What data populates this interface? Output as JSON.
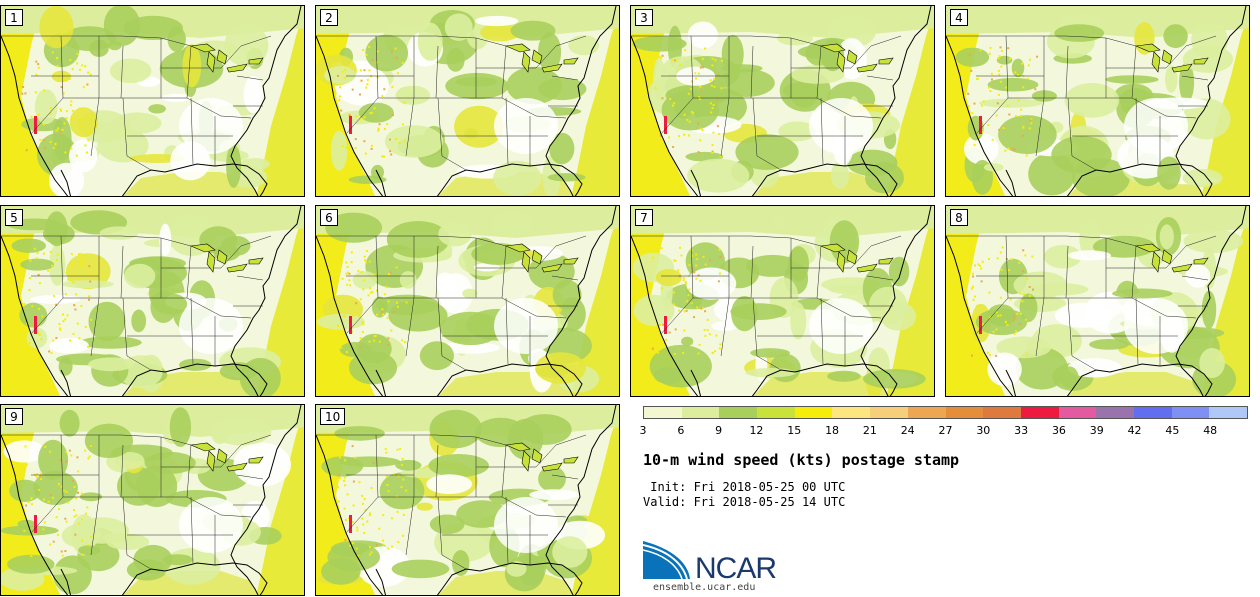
{
  "panels": [
    {
      "label": "1"
    },
    {
      "label": "2"
    },
    {
      "label": "3"
    },
    {
      "label": "4"
    },
    {
      "label": "5"
    },
    {
      "label": "6"
    },
    {
      "label": "7"
    },
    {
      "label": "8"
    },
    {
      "label": "9"
    },
    {
      "label": "10"
    }
  ],
  "colorbar": {
    "colors": [
      "#f2f7cf",
      "#dcee9e",
      "#a8cf5c",
      "#c8e23a",
      "#f5ec0c",
      "#fde680",
      "#f5cf7a",
      "#eda752",
      "#e48e3b",
      "#de7a3e",
      "#ee1b40",
      "#e45aa0",
      "#9a72ac",
      "#626ef0",
      "#7e90f4",
      "#b0c8f8"
    ],
    "ticks": [
      "3",
      "6",
      "9",
      "12",
      "15",
      "18",
      "21",
      "24",
      "27",
      "30",
      "33",
      "36",
      "39",
      "42",
      "45",
      "48"
    ]
  },
  "title": "10-m wind speed (kts) postage stamp",
  "init_line": " Init: Fri 2018-05-25 00 UTC",
  "valid_line": "Valid: Fri 2018-05-25 14 UTC",
  "logo": {
    "text": "NCAR",
    "url": "ensemble.ucar.edu",
    "brand_color": "#0a72b8"
  }
}
